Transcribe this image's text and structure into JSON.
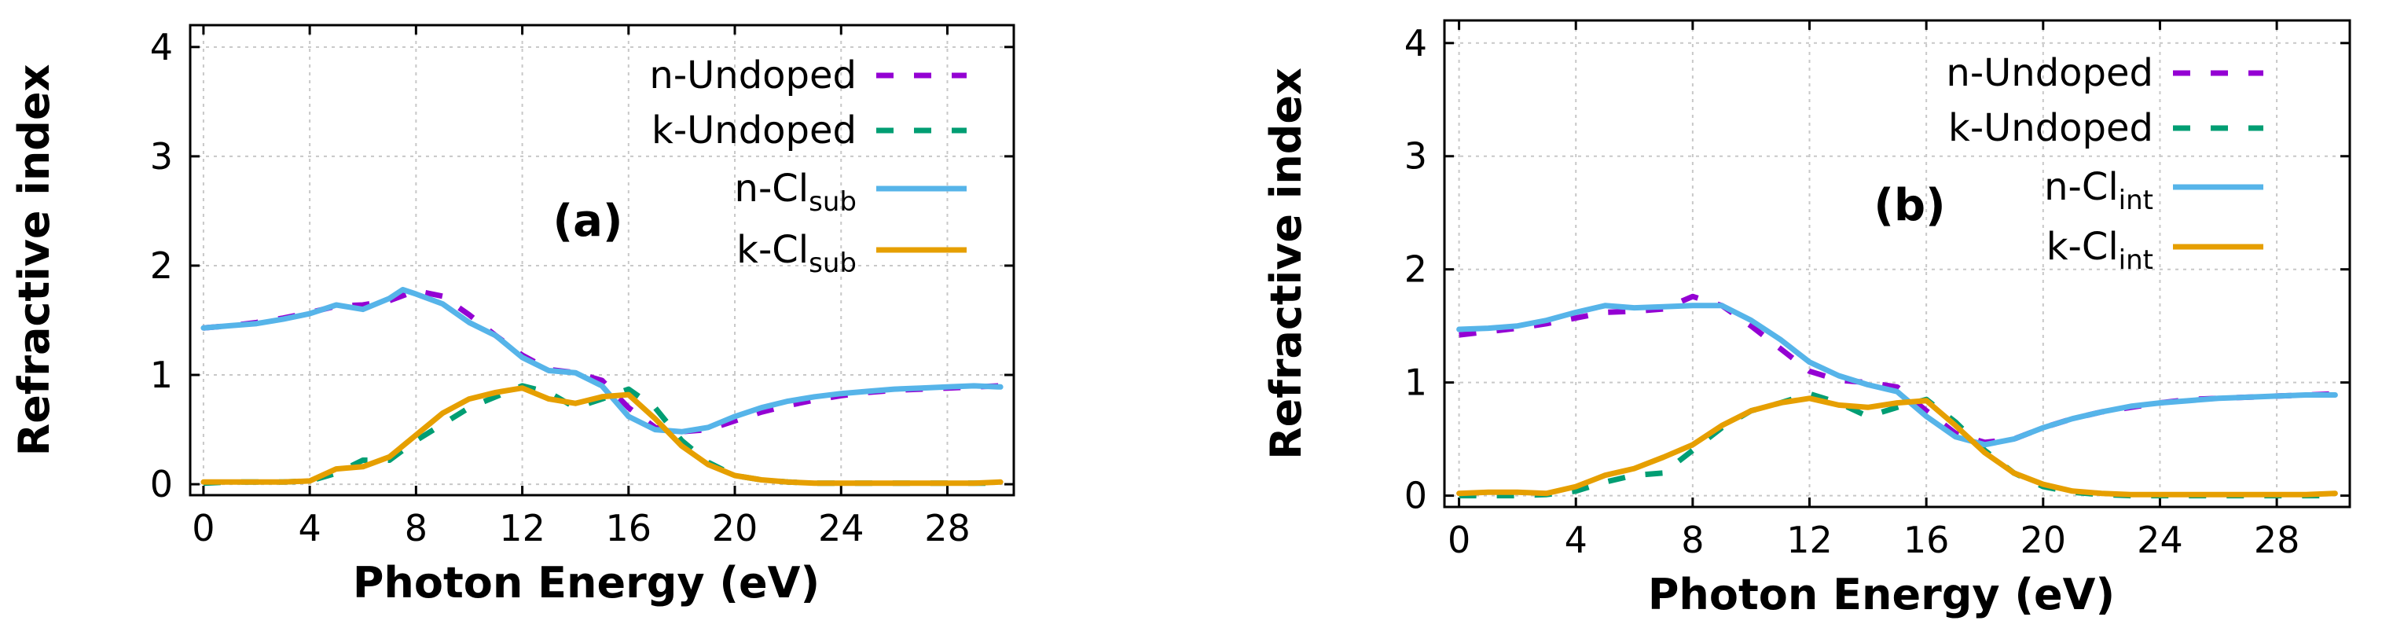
{
  "chart_data": [
    {
      "type": "line",
      "panel_label": "(a)",
      "xlabel": "Photon Energy (eV)",
      "ylabel": "Refractive index",
      "xlim": [
        -0.5,
        30.5
      ],
      "ylim": [
        -0.1,
        4.2
      ],
      "xticks": [
        "0",
        "4",
        "8",
        "12",
        "16",
        "20",
        "24",
        "28"
      ],
      "yticks": [
        "0",
        "1",
        "2",
        "3",
        "4"
      ],
      "grid": true,
      "legend_position": "top-right",
      "series": [
        {
          "name": "n-Undoped",
          "name_main": "n-Undoped",
          "name_sub": "",
          "style": "dashed",
          "color": "#9400d3",
          "x": [
            0,
            1,
            2,
            3,
            4,
            5,
            6,
            7,
            8,
            9,
            10,
            11,
            12,
            13,
            14,
            15,
            16,
            17,
            18,
            19,
            20,
            21,
            22,
            23,
            24,
            25,
            26,
            27,
            28,
            29,
            30
          ],
          "y": [
            1.43,
            1.45,
            1.48,
            1.52,
            1.57,
            1.63,
            1.64,
            1.68,
            1.77,
            1.72,
            1.55,
            1.36,
            1.18,
            1.05,
            1.02,
            0.95,
            0.7,
            0.52,
            0.48,
            0.5,
            0.58,
            0.66,
            0.72,
            0.77,
            0.81,
            0.84,
            0.86,
            0.87,
            0.88,
            0.89,
            0.9
          ]
        },
        {
          "name": "k-Undoped",
          "name_main": "k-Undoped",
          "name_sub": "",
          "style": "dashed",
          "color": "#009e73",
          "x": [
            0,
            1,
            2,
            3,
            4,
            5,
            6,
            7,
            8,
            9,
            10,
            11,
            12,
            13,
            14,
            15,
            16,
            17,
            18,
            19,
            20,
            21,
            22,
            23,
            24,
            25,
            26,
            27,
            28,
            29,
            30
          ],
          "y": [
            0.01,
            0.02,
            0.02,
            0.02,
            0.03,
            0.1,
            0.22,
            0.22,
            0.4,
            0.55,
            0.7,
            0.8,
            0.9,
            0.84,
            0.7,
            0.78,
            0.87,
            0.7,
            0.4,
            0.2,
            0.08,
            0.04,
            0.02,
            0.01,
            0.01,
            0.01,
            0.01,
            0.01,
            0.01,
            0.01,
            0.01
          ]
        },
        {
          "name": "n-Clsub",
          "name_main": "n-Cl",
          "name_sub": "sub",
          "style": "solid",
          "color": "#56b4e9",
          "x": [
            0,
            1,
            2,
            3,
            4,
            5,
            6,
            7,
            7.5,
            8,
            9,
            10,
            11,
            12,
            13,
            14,
            15,
            16,
            17,
            18,
            19,
            20,
            21,
            22,
            23,
            24,
            25,
            26,
            27,
            28,
            29,
            30
          ],
          "y": [
            1.43,
            1.45,
            1.47,
            1.51,
            1.56,
            1.64,
            1.6,
            1.7,
            1.78,
            1.74,
            1.65,
            1.48,
            1.36,
            1.16,
            1.04,
            1.02,
            0.9,
            0.62,
            0.5,
            0.48,
            0.52,
            0.62,
            0.7,
            0.76,
            0.8,
            0.83,
            0.85,
            0.87,
            0.88,
            0.89,
            0.9,
            0.89
          ]
        },
        {
          "name": "k-Clsub",
          "name_main": "k-Cl",
          "name_sub": "sub",
          "style": "solid",
          "color": "#e69f00",
          "x": [
            0,
            1,
            2,
            3,
            4,
            5,
            6,
            7,
            8,
            9,
            10,
            11,
            12,
            13,
            14,
            15,
            16,
            17,
            18,
            19,
            20,
            21,
            22,
            23,
            24,
            25,
            26,
            27,
            28,
            29,
            30
          ],
          "y": [
            0.02,
            0.02,
            0.02,
            0.02,
            0.03,
            0.14,
            0.16,
            0.25,
            0.45,
            0.65,
            0.78,
            0.84,
            0.88,
            0.78,
            0.74,
            0.8,
            0.82,
            0.6,
            0.35,
            0.18,
            0.08,
            0.04,
            0.02,
            0.01,
            0.01,
            0.01,
            0.01,
            0.01,
            0.01,
            0.01,
            0.02
          ]
        }
      ]
    },
    {
      "type": "line",
      "panel_label": "(b)",
      "xlabel": "Photon Energy (eV)",
      "ylabel": "Refractive index",
      "xlim": [
        -0.5,
        30.5
      ],
      "ylim": [
        -0.1,
        4.2
      ],
      "xticks": [
        "0",
        "4",
        "8",
        "12",
        "16",
        "20",
        "24",
        "28"
      ],
      "yticks": [
        "0",
        "1",
        "2",
        "3",
        "4"
      ],
      "grid": true,
      "legend_position": "top-right",
      "series": [
        {
          "name": "n-Undoped",
          "name_main": "n-Undoped",
          "name_sub": "",
          "style": "dashed",
          "color": "#9400d3",
          "x": [
            0,
            1,
            2,
            3,
            4,
            5,
            6,
            7,
            8,
            9,
            10,
            11,
            12,
            13,
            14,
            15,
            16,
            17,
            18,
            19,
            20,
            21,
            22,
            23,
            24,
            25,
            26,
            27,
            28,
            29,
            30
          ],
          "y": [
            1.42,
            1.45,
            1.48,
            1.52,
            1.57,
            1.62,
            1.63,
            1.65,
            1.76,
            1.68,
            1.5,
            1.3,
            1.1,
            1.02,
            1.0,
            0.96,
            0.75,
            0.55,
            0.47,
            0.5,
            0.6,
            0.68,
            0.74,
            0.78,
            0.82,
            0.85,
            0.86,
            0.87,
            0.88,
            0.89,
            0.9
          ]
        },
        {
          "name": "k-Undoped",
          "name_main": "k-Undoped",
          "name_sub": "",
          "style": "dashed",
          "color": "#009e73",
          "x": [
            0,
            1,
            2,
            3,
            4,
            5,
            6,
            7,
            8,
            9,
            10,
            11,
            12,
            13,
            14,
            15,
            16,
            17,
            18,
            19,
            20,
            21,
            22,
            23,
            24,
            25,
            26,
            27,
            28,
            29,
            30
          ],
          "y": [
            0.0,
            0.0,
            0.0,
            0.01,
            0.04,
            0.12,
            0.18,
            0.2,
            0.4,
            0.6,
            0.75,
            0.82,
            0.9,
            0.82,
            0.7,
            0.78,
            0.85,
            0.65,
            0.4,
            0.2,
            0.08,
            0.03,
            0.01,
            0.0,
            0.0,
            0.0,
            0.0,
            0.0,
            0.0,
            0.0,
            0.0
          ]
        },
        {
          "name": "n-Clint",
          "name_main": "n-Cl",
          "name_sub": "int",
          "style": "solid",
          "color": "#56b4e9",
          "x": [
            0,
            1,
            2,
            3,
            4,
            5,
            6,
            7,
            8,
            9,
            10,
            11,
            12,
            13,
            14,
            15,
            16,
            17,
            18,
            19,
            20,
            21,
            22,
            23,
            24,
            25,
            26,
            27,
            28,
            29,
            30
          ],
          "y": [
            1.47,
            1.48,
            1.5,
            1.55,
            1.62,
            1.68,
            1.66,
            1.67,
            1.68,
            1.68,
            1.55,
            1.38,
            1.18,
            1.06,
            0.98,
            0.92,
            0.7,
            0.52,
            0.45,
            0.5,
            0.6,
            0.68,
            0.74,
            0.79,
            0.82,
            0.84,
            0.86,
            0.87,
            0.88,
            0.89,
            0.89
          ]
        },
        {
          "name": "k-Clint",
          "name_main": "k-Cl",
          "name_sub": "int",
          "style": "solid",
          "color": "#e69f00",
          "x": [
            0,
            1,
            2,
            3,
            4,
            5,
            6,
            7,
            8,
            9,
            10,
            11,
            12,
            13,
            14,
            15,
            16,
            17,
            18,
            19,
            20,
            21,
            22,
            23,
            24,
            25,
            26,
            27,
            28,
            29,
            30
          ],
          "y": [
            0.02,
            0.03,
            0.03,
            0.02,
            0.08,
            0.18,
            0.24,
            0.34,
            0.45,
            0.62,
            0.75,
            0.82,
            0.86,
            0.8,
            0.78,
            0.82,
            0.84,
            0.62,
            0.38,
            0.2,
            0.1,
            0.04,
            0.02,
            0.01,
            0.01,
            0.01,
            0.01,
            0.01,
            0.01,
            0.01,
            0.02
          ]
        }
      ]
    }
  ]
}
